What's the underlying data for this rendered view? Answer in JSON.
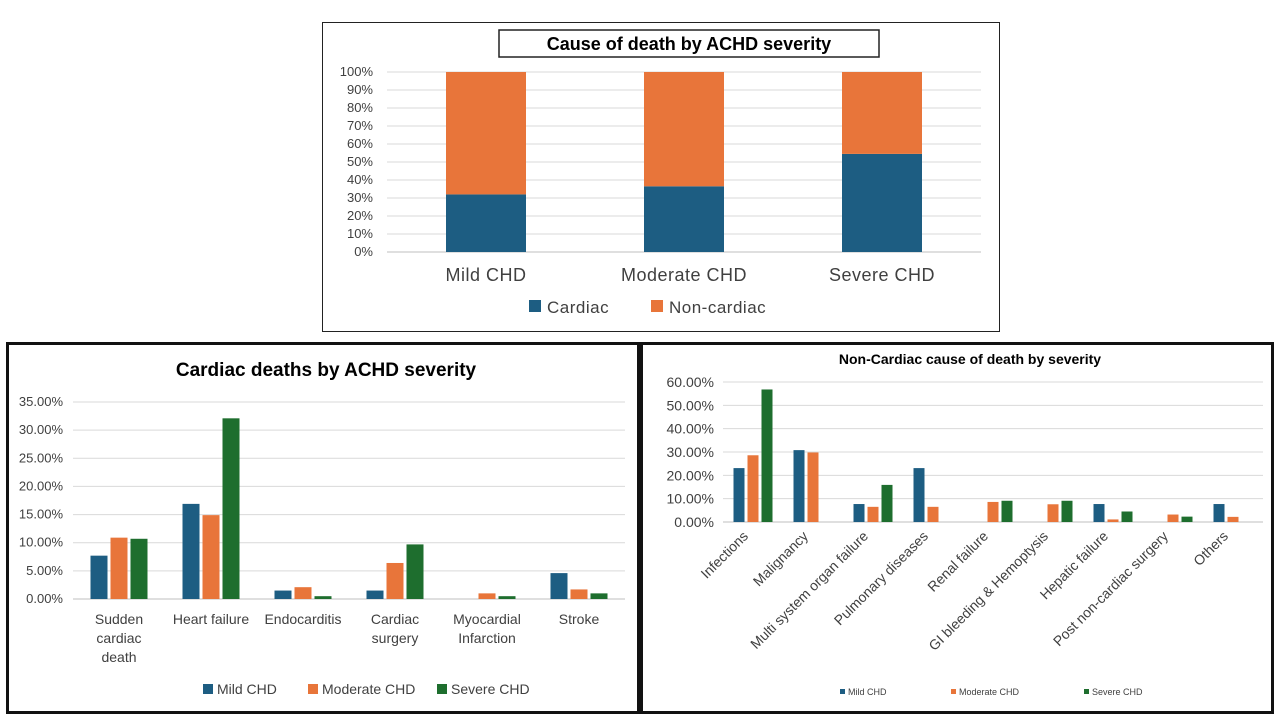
{
  "colors": {
    "mild": "#1d5d82",
    "moderate": "#e8753a",
    "severe": "#1e6e2e",
    "cardiac": "#1d5d82",
    "noncardiac": "#e8753a"
  },
  "chart_data": [
    {
      "type": "bar",
      "stacked": true,
      "title": "Cause of death by ACHD severity",
      "categories": [
        "Mild CHD",
        "Moderate CHD",
        "Severe CHD"
      ],
      "series": [
        {
          "name": "Cardiac",
          "values": [
            32,
            36.5,
            54.5
          ]
        },
        {
          "name": "Non-cardiac",
          "values": [
            68,
            63.5,
            45.5
          ]
        }
      ],
      "ylim": [
        0,
        100
      ],
      "yticks": [
        "0%",
        "10%",
        "20%",
        "30%",
        "40%",
        "50%",
        "60%",
        "70%",
        "80%",
        "90%",
        "100%"
      ],
      "legend": "bottom"
    },
    {
      "type": "bar",
      "title": "Cardiac deaths by ACHD severity",
      "categories": [
        [
          "Sudden",
          "cardiac",
          "death"
        ],
        [
          "Heart failure"
        ],
        [
          "Endocarditis"
        ],
        [
          "Cardiac",
          "surgery"
        ],
        [
          "Myocardial",
          "Infarction"
        ],
        [
          "Stroke"
        ]
      ],
      "series": [
        {
          "name": "Mild CHD",
          "values": [
            7.7,
            16.9,
            1.5,
            1.5,
            0,
            4.6
          ]
        },
        {
          "name": "Moderate CHD",
          "values": [
            10.9,
            14.9,
            2.1,
            6.4,
            1.0,
            1.7
          ]
        },
        {
          "name": "Severe CHD",
          "values": [
            10.7,
            32.1,
            0.5,
            9.7,
            0.5,
            1.0
          ]
        }
      ],
      "ylim": [
        0,
        35
      ],
      "yticks": [
        "0.00%",
        "5.00%",
        "10.00%",
        "15.00%",
        "20.00%",
        "25.00%",
        "30.00%",
        "35.00%"
      ],
      "legend": "bottom"
    },
    {
      "type": "bar",
      "title": "Non-Cardiac cause of death  by severity",
      "categories": [
        "Infections",
        "Malignancy",
        "Multi system organ failure",
        "Pulmonary diseases",
        "Renal failure",
        "GI bleeding & Hemoptysis",
        "Hepatic failure",
        "Post non-cardiac surgery",
        "Others"
      ],
      "series": [
        {
          "name": "Mild CHD",
          "values": [
            23.1,
            30.8,
            7.7,
            23.1,
            0,
            0,
            7.7,
            0,
            7.7
          ]
        },
        {
          "name": "Moderate CHD",
          "values": [
            28.6,
            29.8,
            6.5,
            6.5,
            8.6,
            7.6,
            1.1,
            3.2,
            2.2
          ]
        },
        {
          "name": "Severe CHD",
          "values": [
            56.8,
            0,
            15.9,
            0,
            9.1,
            9.1,
            4.5,
            2.3,
            0
          ]
        }
      ],
      "ylim": [
        0,
        60
      ],
      "yticks": [
        "0.00%",
        "10.00%",
        "20.00%",
        "30.00%",
        "40.00%",
        "50.00%",
        "60.00%"
      ],
      "legend": "bottom"
    }
  ]
}
